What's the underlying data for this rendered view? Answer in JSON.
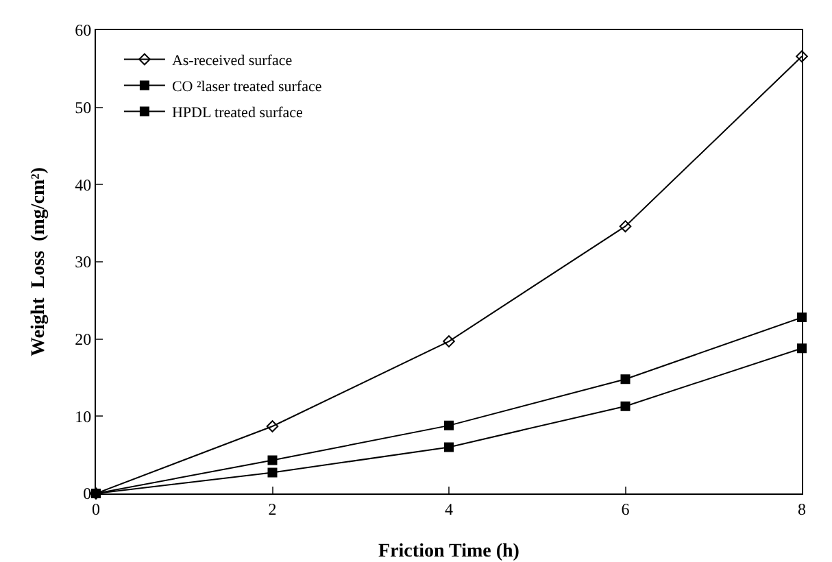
{
  "chart_data": {
    "type": "line",
    "xlabel": "Friction Time (h)",
    "ylabel": "Weight  Loss  (mg/cm²)",
    "x": [
      0,
      2,
      4,
      6,
      8
    ],
    "series": [
      {
        "name": "As-received surface",
        "color": "#000000",
        "marker": "diamond",
        "values": [
          0,
          8.7,
          19.7,
          34.6,
          56.6
        ]
      },
      {
        "name": "CO ²laser treated surface",
        "color": "#000000",
        "marker": "square",
        "values": [
          0,
          4.3,
          8.8,
          14.8,
          22.8
        ]
      },
      {
        "name": "HPDL treated surface",
        "color": "#000000",
        "marker": "square",
        "values": [
          0,
          2.7,
          6,
          11.3,
          18.8
        ]
      }
    ],
    "xlim": [
      0,
      8
    ],
    "xticks": [
      0,
      2,
      4,
      6,
      8
    ],
    "ylim": [
      0,
      60
    ],
    "yticks": [
      0,
      10,
      20,
      30,
      40,
      50,
      60
    ],
    "grid": false,
    "legend": "top left",
    "line_style": "solid"
  }
}
